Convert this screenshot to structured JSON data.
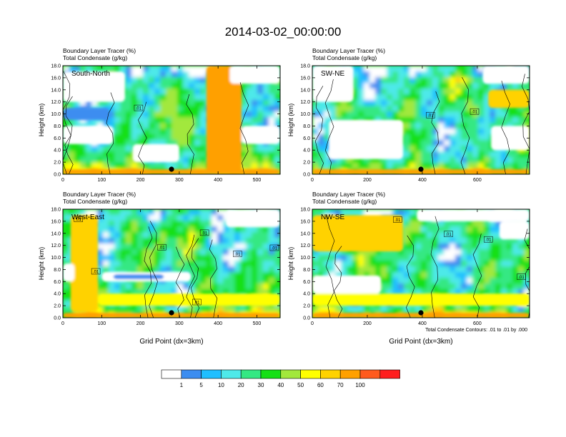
{
  "chart_data": {
    "type": "heatmap",
    "title": "2014-03-02_00:00:00",
    "panels": [
      {
        "name": "South-North",
        "label_top": "Boundary Layer Tracer   (%)",
        "label_bottom": "Total Condensate   (g/kg)",
        "ylabel": "Height (km)",
        "xlabel": "",
        "xlim": [
          0,
          560
        ],
        "ylim": [
          0,
          18
        ],
        "xticks": [
          0,
          100,
          200,
          300,
          400,
          500
        ],
        "yticks": [
          "0.0",
          "2.0",
          "4.0",
          "6.0",
          "8.0",
          "10.0",
          "12.0",
          "14.0",
          "16.0",
          "18.0"
        ],
        "marker_x": 280,
        "contour_labels": [
          {
            "text": ".01",
            "x": 195,
            "y": 11.0
          }
        ],
        "features": [
          {
            "x0": 370,
            "x1": 460,
            "y0": 0,
            "y1": 18,
            "level": 75
          },
          {
            "x0": 380,
            "x1": 450,
            "y0": 8,
            "y1": 18,
            "level": 85
          },
          {
            "x0": 0,
            "x1": 560,
            "y0": 0,
            "y1": 0.8,
            "level": 70
          },
          {
            "x0": 0,
            "x1": 160,
            "y0": 12,
            "y1": 17,
            "level": 0
          },
          {
            "x0": 0,
            "x1": 120,
            "y0": 9,
            "y1": 11,
            "level": 1
          },
          {
            "x0": 0,
            "x1": 130,
            "y0": 5,
            "y1": 8,
            "level": 0
          },
          {
            "x0": 430,
            "x1": 560,
            "y0": 15,
            "y1": 18,
            "level": 0
          },
          {
            "x0": 460,
            "x1": 560,
            "y0": 5,
            "y1": 8,
            "level": 0
          },
          {
            "x0": 180,
            "x1": 300,
            "y0": 2,
            "y1": 5,
            "level": 0
          }
        ]
      },
      {
        "name": "SW-NE",
        "label_top": "Boundary Layer Tracer   (%)",
        "label_bottom": "Total Condensate   (g/kg)",
        "ylabel": "Height (km)",
        "xlabel": "",
        "xlim": [
          0,
          790
        ],
        "ylim": [
          0,
          18
        ],
        "xticks": [
          0,
          200,
          400,
          600
        ],
        "yticks": [
          "0.0",
          "2.0",
          "4.0",
          "6.0",
          "8.0",
          "10.0",
          "12.0",
          "14.0",
          "16.0",
          "18.0"
        ],
        "marker_x": 395,
        "contour_labels": [
          {
            "text": ".01",
            "x": 430,
            "y": 9.8
          },
          {
            "text": ".01",
            "x": 590,
            "y": 10.4
          }
        ],
        "features": [
          {
            "x0": 0,
            "x1": 790,
            "y0": 0,
            "y1": 0.8,
            "level": 70
          },
          {
            "x0": 60,
            "x1": 330,
            "y0": 2.5,
            "y1": 9,
            "level": 0
          },
          {
            "x0": 0,
            "x1": 150,
            "y0": 12,
            "y1": 18,
            "level": 0
          },
          {
            "x0": 620,
            "x1": 790,
            "y0": 15,
            "y1": 18,
            "level": 0
          },
          {
            "x0": 640,
            "x1": 790,
            "y0": 11,
            "y1": 14,
            "level": 65
          },
          {
            "x0": 650,
            "x1": 790,
            "y0": 4,
            "y1": 8,
            "level": 0
          }
        ]
      },
      {
        "name": "West-East",
        "label_top": "Boundary Layer Tracer   (%)",
        "label_bottom": "Total Condensate   (g/kg)",
        "ylabel": "Height (km)",
        "xlabel": "Grid Point (dx=3km)",
        "xlim": [
          0,
          560
        ],
        "ylim": [
          0,
          18
        ],
        "xticks": [
          0,
          100,
          200,
          300,
          400,
          500
        ],
        "yticks": [
          "0.0",
          "2.0",
          "4.0",
          "6.0",
          "8.0",
          "10.0",
          "12.0",
          "14.0",
          "16.0",
          "18.0"
        ],
        "marker_x": 280,
        "contour_labels": [
          {
            "text": ".01",
            "x": 255,
            "y": 11.7
          },
          {
            "text": ".01",
            "x": 365,
            "y": 14.1
          },
          {
            "text": ".01",
            "x": 450,
            "y": 10.6
          },
          {
            "text": ".01",
            "x": 545,
            "y": 11.6
          },
          {
            "text": ".01",
            "x": 85,
            "y": 7.7
          },
          {
            "text": ".01",
            "x": 345,
            "y": 2.6
          },
          {
            "text": ".01",
            "x": 40,
            "y": 16.4
          }
        ],
        "features": [
          {
            "x0": 0,
            "x1": 560,
            "y0": 0,
            "y1": 0.8,
            "level": 70
          },
          {
            "x0": 20,
            "x1": 90,
            "y0": 1,
            "y1": 17,
            "level": 60
          },
          {
            "x0": 100,
            "x1": 330,
            "y0": 6,
            "y1": 7.6,
            "level": 0
          },
          {
            "x0": 130,
            "x1": 260,
            "y0": 6.4,
            "y1": 7.2,
            "level": 1
          },
          {
            "x0": 0,
            "x1": 30,
            "y0": 6,
            "y1": 9,
            "level": 0
          },
          {
            "x0": 90,
            "x1": 560,
            "y0": 2,
            "y1": 4,
            "level": 50
          },
          {
            "x0": 420,
            "x1": 560,
            "y0": 15,
            "y1": 18,
            "level": 0
          }
        ]
      },
      {
        "name": "NW-SE",
        "label_top": "Boundary Layer Tracer   (%)",
        "label_bottom": "Total Condensate   (g/kg)",
        "ylabel": "Height (km)",
        "xlabel": "Grid Point (dx=3km)",
        "xlim": [
          0,
          790
        ],
        "ylim": [
          0,
          18
        ],
        "xticks": [
          0,
          200,
          400,
          600
        ],
        "yticks": [
          "0.0",
          "2.0",
          "4.0",
          "6.0",
          "8.0",
          "10.0",
          "12.0",
          "14.0",
          "16.0",
          "18.0"
        ],
        "marker_x": 395,
        "contour_labels": [
          {
            "text": ".01",
            "x": 310,
            "y": 16.3
          },
          {
            "text": ".01",
            "x": 495,
            "y": 13.9
          },
          {
            "text": ".01",
            "x": 640,
            "y": 13.0
          },
          {
            "text": ".01",
            "x": 760,
            "y": 6.8
          }
        ],
        "features": [
          {
            "x0": 0,
            "x1": 790,
            "y0": 0,
            "y1": 0.8,
            "level": 70
          },
          {
            "x0": 0,
            "x1": 330,
            "y0": 11,
            "y1": 17,
            "level": 65
          },
          {
            "x0": 0,
            "x1": 250,
            "y0": 4,
            "y1": 7,
            "level": 0
          },
          {
            "x0": 380,
            "x1": 790,
            "y0": 16,
            "y1": 18,
            "level": 0
          },
          {
            "x0": 680,
            "x1": 790,
            "y0": 13,
            "y1": 16,
            "level": 0
          },
          {
            "x0": 0,
            "x1": 790,
            "y0": 2,
            "y1": 4,
            "level": 55
          }
        ]
      }
    ],
    "footnote": "Total Condensate Contours: .01 to .01 by .000",
    "colorbar": {
      "labels": [
        "1",
        "5",
        "10",
        "20",
        "30",
        "40",
        "50",
        "60",
        "70",
        "100"
      ],
      "colors": [
        "#ffffff",
        "#3c8df0",
        "#1fbfff",
        "#4ee9e9",
        "#34e883",
        "#16e016",
        "#a2e83c",
        "#ffff00",
        "#ffd200",
        "#ffa000",
        "#ff5a1e",
        "#ff1e1e"
      ]
    }
  }
}
